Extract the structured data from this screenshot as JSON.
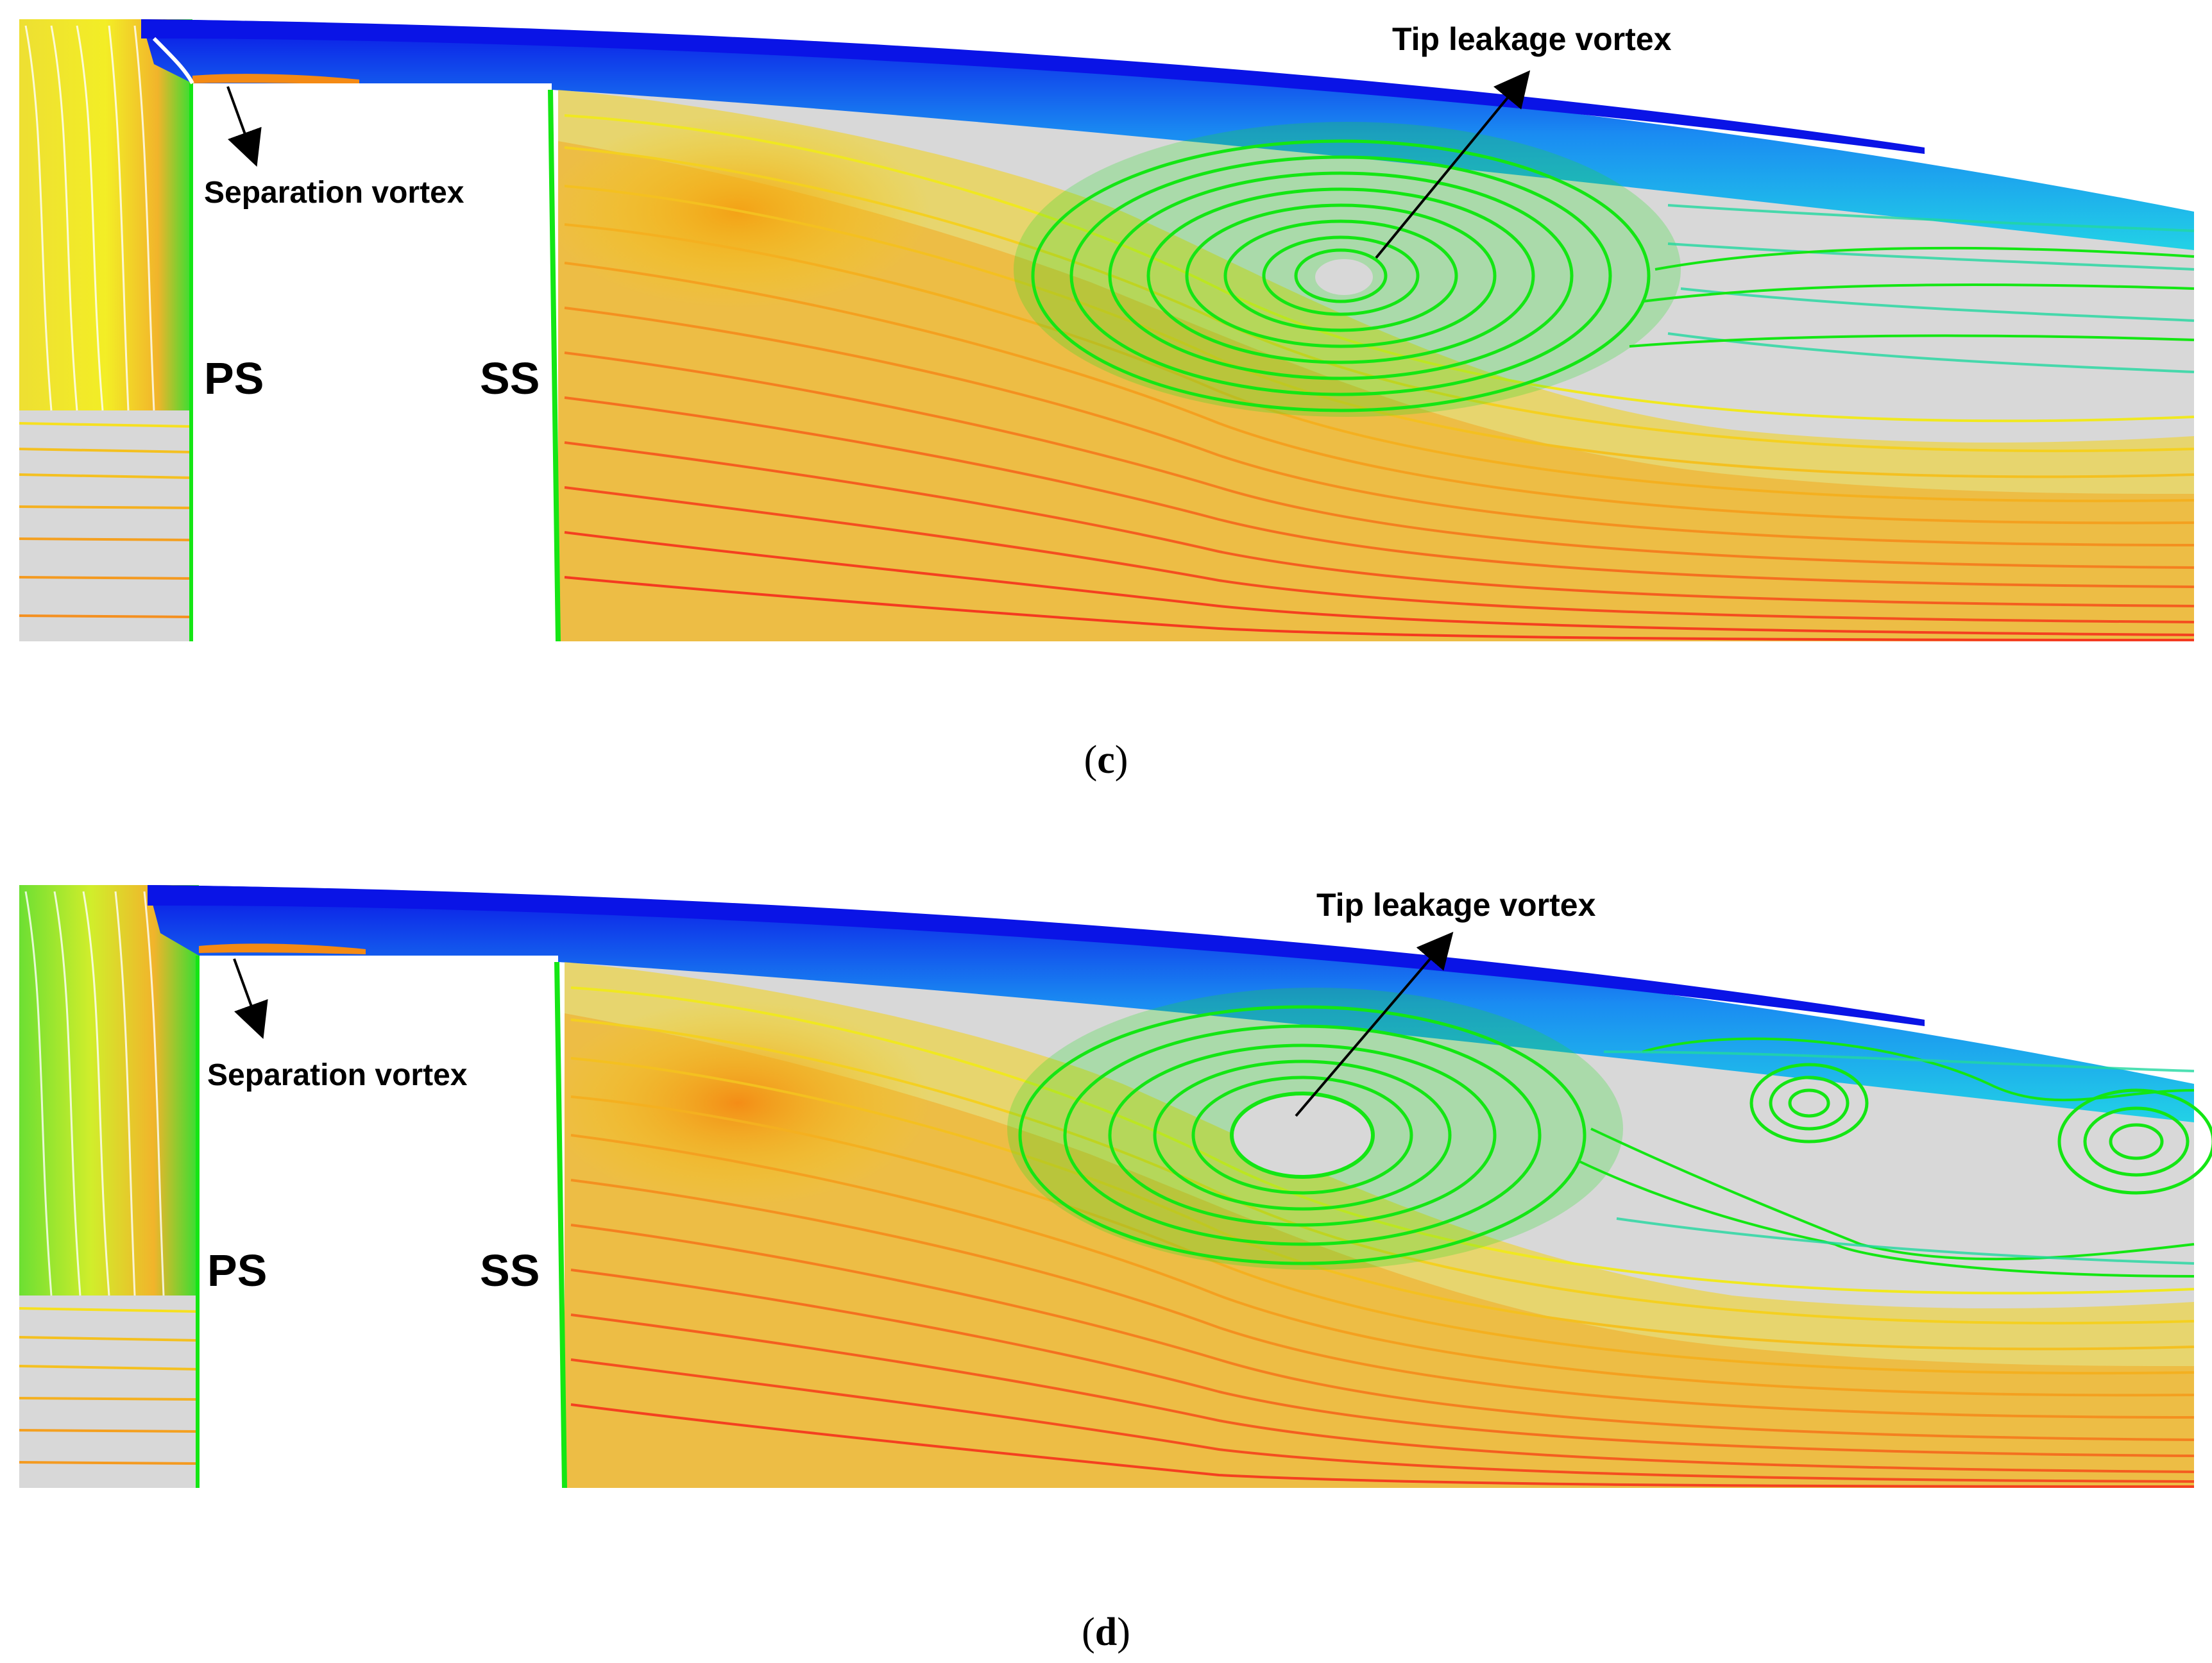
{
  "panels": [
    {
      "id": "c",
      "caption_open": "(",
      "caption_letter": "c",
      "caption_close": ")",
      "labels": {
        "tip": "Tip leakage vortex",
        "separation": "Separation vortex",
        "ps": "PS",
        "ss": "SS"
      }
    },
    {
      "id": "d",
      "caption_open": "(",
      "caption_letter": "d",
      "caption_close": ")",
      "labels": {
        "tip": "Tip leakage vortex",
        "separation": "Separation vortex",
        "ps": "PS",
        "ss": "SS"
      }
    }
  ],
  "colors": {
    "background_gray": "#d8d8d8",
    "tip_blue": "#0a14e6",
    "cyan": "#22c8ea",
    "green": "#14e614",
    "yellow": "#f2f20a",
    "orange": "#f29a14",
    "red": "#f23a14"
  }
}
